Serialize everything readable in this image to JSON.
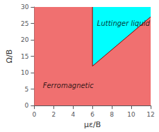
{
  "chart_data": {
    "type": "area",
    "xlabel": "με/B",
    "ylabel": "Ω/B",
    "xlim": [
      0,
      12
    ],
    "ylim": [
      0,
      30
    ],
    "xticks": [
      0,
      2,
      4,
      6,
      8,
      10,
      12
    ],
    "yticks": [
      0,
      5,
      10,
      15,
      20,
      25,
      30
    ],
    "grid": false,
    "series": [
      {
        "type": "area",
        "color": "#F07070",
        "x": [
          0,
          0,
          12,
          12
        ],
        "values": [
          0,
          30,
          30,
          0
        ]
      },
      {
        "type": "area",
        "color": "#00FFFF",
        "x": [
          6,
          6,
          12,
          12
        ],
        "values": [
          12,
          30,
          30,
          27
        ]
      },
      {
        "type": "line",
        "color": "#8B0000",
        "x": [
          6,
          6
        ],
        "values": [
          12,
          30
        ]
      },
      {
        "type": "line",
        "color": "#8B0000",
        "x": [
          6,
          12
        ],
        "values": [
          12,
          27
        ]
      }
    ],
    "annotations": [
      {
        "text": "Ferromagnetic",
        "x": 3.5,
        "y": 6.0
      },
      {
        "text": "Luttinger liquid",
        "x": 9.2,
        "y": 25.0
      }
    ]
  }
}
